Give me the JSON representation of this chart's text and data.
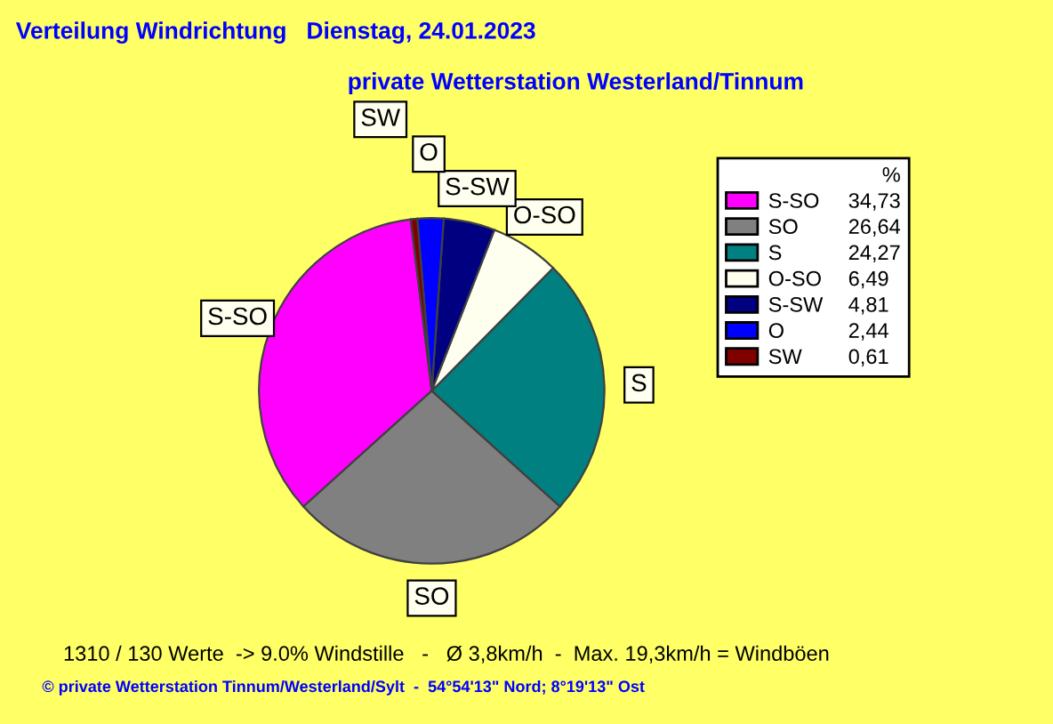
{
  "chart_data": {
    "type": "pie",
    "title": "Verteilung Windrichtung   Dienstag, 24.01.2023",
    "subtitle": "private Wetterstation Westerland/Tinnum",
    "legend_title": "%",
    "legend": "top right",
    "categories": [
      "S-SO",
      "SO",
      "S",
      "O-SO",
      "S-SW",
      "O",
      "SW"
    ],
    "values": [
      34.73,
      26.64,
      24.27,
      6.49,
      4.81,
      2.44,
      0.61
    ],
    "value_labels": [
      "34,73",
      "26,64",
      "24,27",
      "6,49",
      "4,81",
      "2,44",
      "0,61"
    ],
    "colors": [
      "#ff00ff",
      "#808080",
      "#008080",
      "#fffff0",
      "#000080",
      "#0000ff",
      "#800000"
    ],
    "annotations": [
      "1310 / 130 Werte  -> 9.0% Windstille   -   Ø 3,8km/h  -  Max. 19,3km/h = Windböen",
      "© private Wetterstation Tinnum/Westerland/Sylt  -  54°54'13\" Nord; 8°19'13\" Ost"
    ]
  }
}
